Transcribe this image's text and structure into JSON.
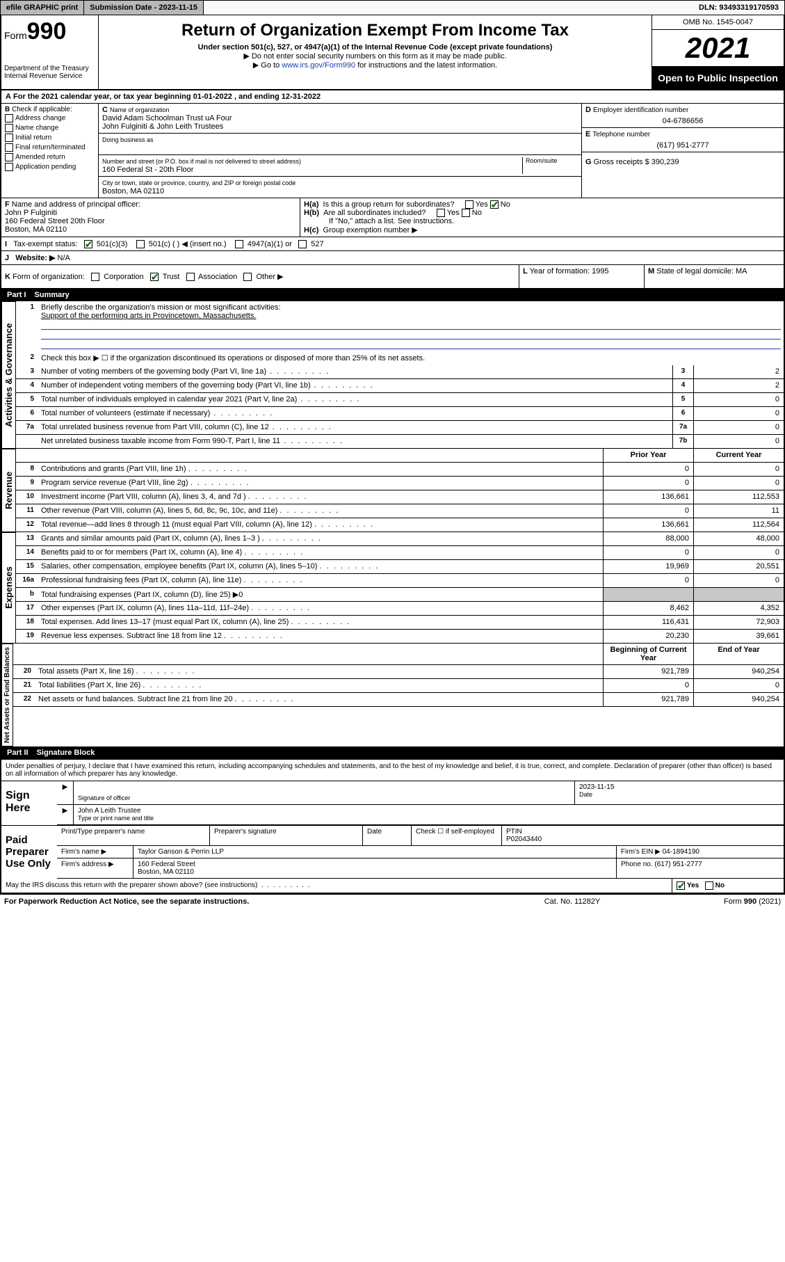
{
  "topbar": {
    "efile": "efile GRAPHIC print",
    "subdate_label": "Submission Date - ",
    "subdate": "2023-11-15",
    "dln_label": "DLN: ",
    "dln": "93493319170593"
  },
  "header": {
    "form_prefix": "Form",
    "form_no": "990",
    "dept": "Department of the Treasury\nInternal Revenue Service",
    "title": "Return of Organization Exempt From Income Tax",
    "sub1": "Under section 501(c), 527, or 4947(a)(1) of the Internal Revenue Code (except private foundations)",
    "sub2": "▶ Do not enter social security numbers on this form as it may be made public.",
    "sub3_pre": "▶ Go to ",
    "sub3_link": "www.irs.gov/Form990",
    "sub3_post": " for instructions and the latest information.",
    "omb": "OMB No. 1545-0047",
    "year": "2021",
    "open": "Open to Public Inspection"
  },
  "A": {
    "text": "For the 2021 calendar year, or tax year beginning ",
    "start": "01-01-2022",
    "mid": " , and ending ",
    "end": "12-31-2022"
  },
  "B": {
    "label": "Check if applicable:",
    "items": [
      "Address change",
      "Name change",
      "Initial return",
      "Final return/terminated",
      "Amended return",
      "Application pending"
    ]
  },
  "C": {
    "name_label": "Name of organization",
    "name1": "David Adam Schoolman Trust uA Four",
    "name2": "John Fulginiti & John Leith Trustees",
    "dba_label": "Doing business as",
    "addr_label": "Number and street (or P.O. box if mail is not delivered to street address)",
    "room_label": "Room/suite",
    "addr": "160 Federal St - 20th Floor",
    "city_label": "City or town, state or province, country, and ZIP or foreign postal code",
    "city": "Boston, MA  02110"
  },
  "D": {
    "label": "Employer identification number",
    "val": "04-6786656"
  },
  "E": {
    "label": "Telephone number",
    "val": "(617) 951-2777"
  },
  "G": {
    "label": "Gross receipts $ ",
    "val": "390,239"
  },
  "F": {
    "label": "Name and address of principal officer:",
    "name": "John P Fulginiti",
    "addr1": "160 Federal Street 20th Floor",
    "addr2": "Boston, MA  02110"
  },
  "H": {
    "a": "Is this a group return for subordinates?",
    "b": "Are all subordinates included?",
    "note": "If \"No,\" attach a list. See instructions.",
    "c": "Group exemption number ▶"
  },
  "I": {
    "label": "Tax-exempt status:",
    "opts": [
      "501(c)(3)",
      "501(c) (  ) ◀ (insert no.)",
      "4947(a)(1) or",
      "527"
    ]
  },
  "J": {
    "label": "Website: ▶",
    "val": "N/A"
  },
  "K": {
    "label": "Form of organization:",
    "opts": [
      "Corporation",
      "Trust",
      "Association",
      "Other ▶"
    ]
  },
  "L": {
    "label": "Year of formation: ",
    "val": "1995"
  },
  "M": {
    "label": "State of legal domicile: ",
    "val": "MA"
  },
  "part1": {
    "title": "Summary",
    "q1": "Briefly describe the organization's mission or most significant activities:",
    "a1": "Support of the performing arts in Provincetown, Massachusetts.",
    "q2": "Check this box ▶ ☐  if the organization discontinued its operations or disposed of more than 25% of its net assets.",
    "governance": [
      {
        "n": "3",
        "d": "Number of voting members of the governing body (Part VI, line 1a)",
        "b": "3",
        "v": "2"
      },
      {
        "n": "4",
        "d": "Number of independent voting members of the governing body (Part VI, line 1b)",
        "b": "4",
        "v": "2"
      },
      {
        "n": "5",
        "d": "Total number of individuals employed in calendar year 2021 (Part V, line 2a)",
        "b": "5",
        "v": "0"
      },
      {
        "n": "6",
        "d": "Total number of volunteers (estimate if necessary)",
        "b": "6",
        "v": "0"
      },
      {
        "n": "7a",
        "d": "Total unrelated business revenue from Part VIII, column (C), line 12",
        "b": "7a",
        "v": "0"
      },
      {
        "n": "",
        "d": "Net unrelated business taxable income from Form 990-T, Part I, line 11",
        "b": "7b",
        "v": "0"
      }
    ],
    "col_prior": "Prior Year",
    "col_current": "Current Year",
    "revenue": [
      {
        "n": "8",
        "d": "Contributions and grants (Part VIII, line 1h)",
        "p": "0",
        "c": "0"
      },
      {
        "n": "9",
        "d": "Program service revenue (Part VIII, line 2g)",
        "p": "0",
        "c": "0"
      },
      {
        "n": "10",
        "d": "Investment income (Part VIII, column (A), lines 3, 4, and 7d )",
        "p": "136,661",
        "c": "112,553"
      },
      {
        "n": "11",
        "d": "Other revenue (Part VIII, column (A), lines 5, 6d, 8c, 9c, 10c, and 11e)",
        "p": "0",
        "c": "11"
      },
      {
        "n": "12",
        "d": "Total revenue—add lines 8 through 11 (must equal Part VIII, column (A), line 12)",
        "p": "136,661",
        "c": "112,564"
      }
    ],
    "expenses": [
      {
        "n": "13",
        "d": "Grants and similar amounts paid (Part IX, column (A), lines 1–3 )",
        "p": "88,000",
        "c": "48,000"
      },
      {
        "n": "14",
        "d": "Benefits paid to or for members (Part IX, column (A), line 4)",
        "p": "0",
        "c": "0"
      },
      {
        "n": "15",
        "d": "Salaries, other compensation, employee benefits (Part IX, column (A), lines 5–10)",
        "p": "19,969",
        "c": "20,551"
      },
      {
        "n": "16a",
        "d": "Professional fundraising fees (Part IX, column (A), line 11e)",
        "p": "0",
        "c": "0"
      },
      {
        "n": "b",
        "d": "Total fundraising expenses (Part IX, column (D), line 25) ▶0",
        "p": "",
        "c": "",
        "shade": true
      },
      {
        "n": "17",
        "d": "Other expenses (Part IX, column (A), lines 11a–11d, 11f–24e)",
        "p": "8,462",
        "c": "4,352"
      },
      {
        "n": "18",
        "d": "Total expenses. Add lines 13–17 (must equal Part IX, column (A), line 25)",
        "p": "116,431",
        "c": "72,903"
      },
      {
        "n": "19",
        "d": "Revenue less expenses. Subtract line 18 from line 12",
        "p": "20,230",
        "c": "39,661"
      }
    ],
    "col_begin": "Beginning of Current Year",
    "col_end": "End of Year",
    "netassets": [
      {
        "n": "20",
        "d": "Total assets (Part X, line 16)",
        "p": "921,789",
        "c": "940,254"
      },
      {
        "n": "21",
        "d": "Total liabilities (Part X, line 26)",
        "p": "0",
        "c": "0"
      },
      {
        "n": "22",
        "d": "Net assets or fund balances. Subtract line 21 from line 20",
        "p": "921,789",
        "c": "940,254"
      }
    ],
    "side_gov": "Activities & Governance",
    "side_rev": "Revenue",
    "side_exp": "Expenses",
    "side_net": "Net Assets or Fund Balances"
  },
  "part2": {
    "title": "Signature Block",
    "decl": "Under penalties of perjury, I declare that I have examined this return, including accompanying schedules and statements, and to the best of my knowledge and belief, it is true, correct, and complete. Declaration of preparer (other than officer) is based on all information of which preparer has any knowledge.",
    "sign_here": "Sign Here",
    "sig_officer": "Signature of officer",
    "sig_date_label": "Date",
    "sig_date": "2023-11-15",
    "sig_name": "John A Leith  Trustee",
    "sig_name_label": "Type or print name and title",
    "paid": "Paid Preparer Use Only",
    "prep_name_label": "Print/Type preparer's name",
    "prep_sig_label": "Preparer's signature",
    "date_label": "Date",
    "check_self": "Check ☐ if self-employed",
    "ptin_label": "PTIN",
    "ptin": "P02043440",
    "firm_name_label": "Firm's name   ▶",
    "firm_name": "Taylor Ganson & Perrin LLP",
    "firm_ein_label": "Firm's EIN ▶",
    "firm_ein": "04-1894190",
    "firm_addr_label": "Firm's address ▶",
    "firm_addr1": "160 Federal Street",
    "firm_addr2": "Boston, MA  02110",
    "phone_label": "Phone no. ",
    "phone": "(617) 951-2777",
    "irs_discuss": "May the IRS discuss this return with the preparer shown above? (see instructions)",
    "yes": "Yes",
    "no": "No"
  },
  "footer": {
    "l": "For Paperwork Reduction Act Notice, see the separate instructions.",
    "c": "Cat. No. 11282Y",
    "r": "Form 990 (2021)"
  }
}
